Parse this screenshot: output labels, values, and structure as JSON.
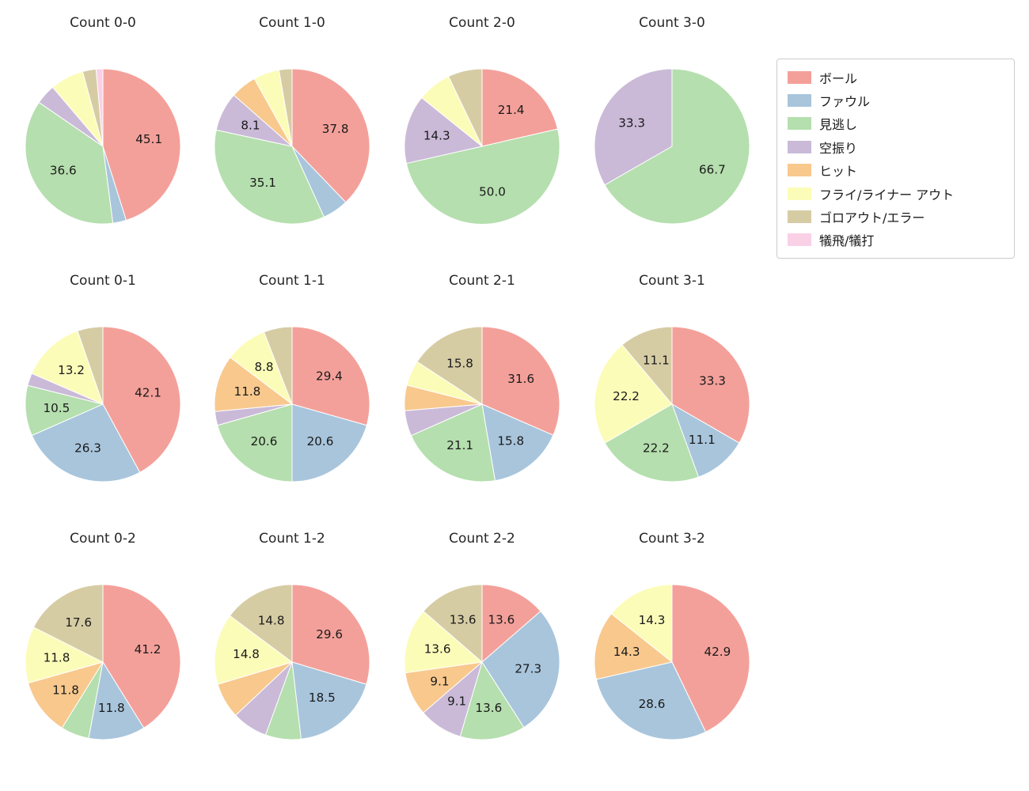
{
  "legend": {
    "items": [
      {
        "key": "ball",
        "label": "ボール",
        "color": "#f4a09a"
      },
      {
        "key": "foul",
        "label": "ファウル",
        "color": "#a8c5dc"
      },
      {
        "key": "called-strike",
        "label": "見逃し",
        "color": "#b5dfae"
      },
      {
        "key": "swinging-strike",
        "label": "空振り",
        "color": "#cabad8"
      },
      {
        "key": "hit",
        "label": "ヒット",
        "color": "#f8c88d"
      },
      {
        "key": "fly-liner-out",
        "label": "フライ/ライナー アウト",
        "color": "#fcfcb9"
      },
      {
        "key": "groundout-error",
        "label": "ゴロアウト/エラー",
        "color": "#d6cca4"
      },
      {
        "key": "sacrifice",
        "label": "犠飛/犠打",
        "color": "#fad0e6"
      }
    ]
  },
  "chart_data": [
    {
      "type": "pie",
      "title": "Count 0-0",
      "slices": [
        {
          "category": "ボール",
          "value": 45.1,
          "label": "45.1"
        },
        {
          "category": "ファウル",
          "value": 2.8,
          "label": null
        },
        {
          "category": "見逃し",
          "value": 36.6,
          "label": "36.6"
        },
        {
          "category": "空振り",
          "value": 4.2,
          "label": null
        },
        {
          "category": "フライ/ライナー アウト",
          "value": 7.0,
          "label": null
        },
        {
          "category": "ゴロアウト/エラー",
          "value": 2.8,
          "label": null
        },
        {
          "category": "犠飛/犠打",
          "value": 1.4,
          "label": null
        }
      ]
    },
    {
      "type": "pie",
      "title": "Count 1-0",
      "slices": [
        {
          "category": "ボール",
          "value": 37.8,
          "label": "37.8"
        },
        {
          "category": "ファウル",
          "value": 5.4,
          "label": null
        },
        {
          "category": "見逃し",
          "value": 35.1,
          "label": "35.1"
        },
        {
          "category": "空振り",
          "value": 8.1,
          "label": "8.1"
        },
        {
          "category": "ヒット",
          "value": 5.4,
          "label": null
        },
        {
          "category": "フライ/ライナー アウト",
          "value": 5.4,
          "label": null
        },
        {
          "category": "ゴロアウト/エラー",
          "value": 2.7,
          "label": null
        }
      ]
    },
    {
      "type": "pie",
      "title": "Count 2-0",
      "slices": [
        {
          "category": "ボール",
          "value": 21.4,
          "label": "21.4"
        },
        {
          "category": "見逃し",
          "value": 50.0,
          "label": "50.0"
        },
        {
          "category": "空振り",
          "value": 14.3,
          "label": "14.3"
        },
        {
          "category": "フライ/ライナー アウト",
          "value": 7.1,
          "label": null
        },
        {
          "category": "ゴロアウト/エラー",
          "value": 7.1,
          "label": null
        }
      ]
    },
    {
      "type": "pie",
      "title": "Count 3-0",
      "slices": [
        {
          "category": "見逃し",
          "value": 66.7,
          "label": "66.7"
        },
        {
          "category": "空振り",
          "value": 33.3,
          "label": "33.3"
        }
      ]
    },
    {
      "type": "pie",
      "title": "Count 0-1",
      "slices": [
        {
          "category": "ボール",
          "value": 42.1,
          "label": "42.1"
        },
        {
          "category": "ファウル",
          "value": 26.3,
          "label": "26.3"
        },
        {
          "category": "見逃し",
          "value": 10.5,
          "label": "10.5"
        },
        {
          "category": "空振り",
          "value": 2.6,
          "label": null
        },
        {
          "category": "フライ/ライナー アウト",
          "value": 13.2,
          "label": "13.2"
        },
        {
          "category": "ゴロアウト/エラー",
          "value": 5.3,
          "label": null
        }
      ]
    },
    {
      "type": "pie",
      "title": "Count 1-1",
      "slices": [
        {
          "category": "ボール",
          "value": 29.4,
          "label": "29.4"
        },
        {
          "category": "ファウル",
          "value": 20.6,
          "label": "20.6"
        },
        {
          "category": "見逃し",
          "value": 20.6,
          "label": "20.6"
        },
        {
          "category": "空振り",
          "value": 2.9,
          "label": null
        },
        {
          "category": "ヒット",
          "value": 11.8,
          "label": "11.8"
        },
        {
          "category": "フライ/ライナー アウト",
          "value": 8.8,
          "label": "8.8"
        },
        {
          "category": "ゴロアウト/エラー",
          "value": 5.9,
          "label": null
        }
      ]
    },
    {
      "type": "pie",
      "title": "Count 2-1",
      "slices": [
        {
          "category": "ボール",
          "value": 31.6,
          "label": "31.6"
        },
        {
          "category": "ファウル",
          "value": 15.8,
          "label": "15.8"
        },
        {
          "category": "見逃し",
          "value": 21.1,
          "label": "21.1"
        },
        {
          "category": "空振り",
          "value": 5.3,
          "label": null
        },
        {
          "category": "ヒット",
          "value": 5.3,
          "label": null
        },
        {
          "category": "フライ/ライナー アウト",
          "value": 5.3,
          "label": null
        },
        {
          "category": "ゴロアウト/エラー",
          "value": 15.8,
          "label": "15.8"
        }
      ]
    },
    {
      "type": "pie",
      "title": "Count 3-1",
      "slices": [
        {
          "category": "ボール",
          "value": 33.3,
          "label": "33.3"
        },
        {
          "category": "ファウル",
          "value": 11.1,
          "label": "11.1"
        },
        {
          "category": "見逃し",
          "value": 22.2,
          "label": "22.2"
        },
        {
          "category": "フライ/ライナー アウト",
          "value": 22.2,
          "label": "22.2"
        },
        {
          "category": "ゴロアウト/エラー",
          "value": 11.1,
          "label": "11.1"
        }
      ]
    },
    {
      "type": "pie",
      "title": "Count 0-2",
      "slices": [
        {
          "category": "ボール",
          "value": 41.2,
          "label": "41.2"
        },
        {
          "category": "ファウル",
          "value": 11.8,
          "label": "11.8"
        },
        {
          "category": "見逃し",
          "value": 5.9,
          "label": null
        },
        {
          "category": "ヒット",
          "value": 11.8,
          "label": "11.8"
        },
        {
          "category": "フライ/ライナー アウト",
          "value": 11.8,
          "label": "11.8"
        },
        {
          "category": "ゴロアウト/エラー",
          "value": 17.6,
          "label": "17.6"
        }
      ]
    },
    {
      "type": "pie",
      "title": "Count 1-2",
      "slices": [
        {
          "category": "ボール",
          "value": 29.6,
          "label": "29.6"
        },
        {
          "category": "ファウル",
          "value": 18.5,
          "label": "18.5"
        },
        {
          "category": "見逃し",
          "value": 7.4,
          "label": null
        },
        {
          "category": "空振り",
          "value": 7.4,
          "label": null
        },
        {
          "category": "ヒット",
          "value": 7.4,
          "label": null
        },
        {
          "category": "フライ/ライナー アウト",
          "value": 14.8,
          "label": "14.8"
        },
        {
          "category": "ゴロアウト/エラー",
          "value": 14.8,
          "label": "14.8"
        }
      ]
    },
    {
      "type": "pie",
      "title": "Count 2-2",
      "slices": [
        {
          "category": "ボール",
          "value": 13.6,
          "label": "13.6"
        },
        {
          "category": "ファウル",
          "value": 27.3,
          "label": "27.3"
        },
        {
          "category": "見逃し",
          "value": 13.6,
          "label": "13.6"
        },
        {
          "category": "空振り",
          "value": 9.1,
          "label": "9.1"
        },
        {
          "category": "ヒット",
          "value": 9.1,
          "label": "9.1"
        },
        {
          "category": "フライ/ライナー アウト",
          "value": 13.6,
          "label": "13.6"
        },
        {
          "category": "ゴロアウト/エラー",
          "value": 13.6,
          "label": "13.6"
        }
      ]
    },
    {
      "type": "pie",
      "title": "Count 3-2",
      "slices": [
        {
          "category": "ボール",
          "value": 42.9,
          "label": "42.9"
        },
        {
          "category": "ファウル",
          "value": 28.6,
          "label": "28.6"
        },
        {
          "category": "ヒット",
          "value": 14.3,
          "label": "14.3"
        },
        {
          "category": "フライ/ライナー アウト",
          "value": 14.3,
          "label": "14.3"
        }
      ]
    }
  ]
}
